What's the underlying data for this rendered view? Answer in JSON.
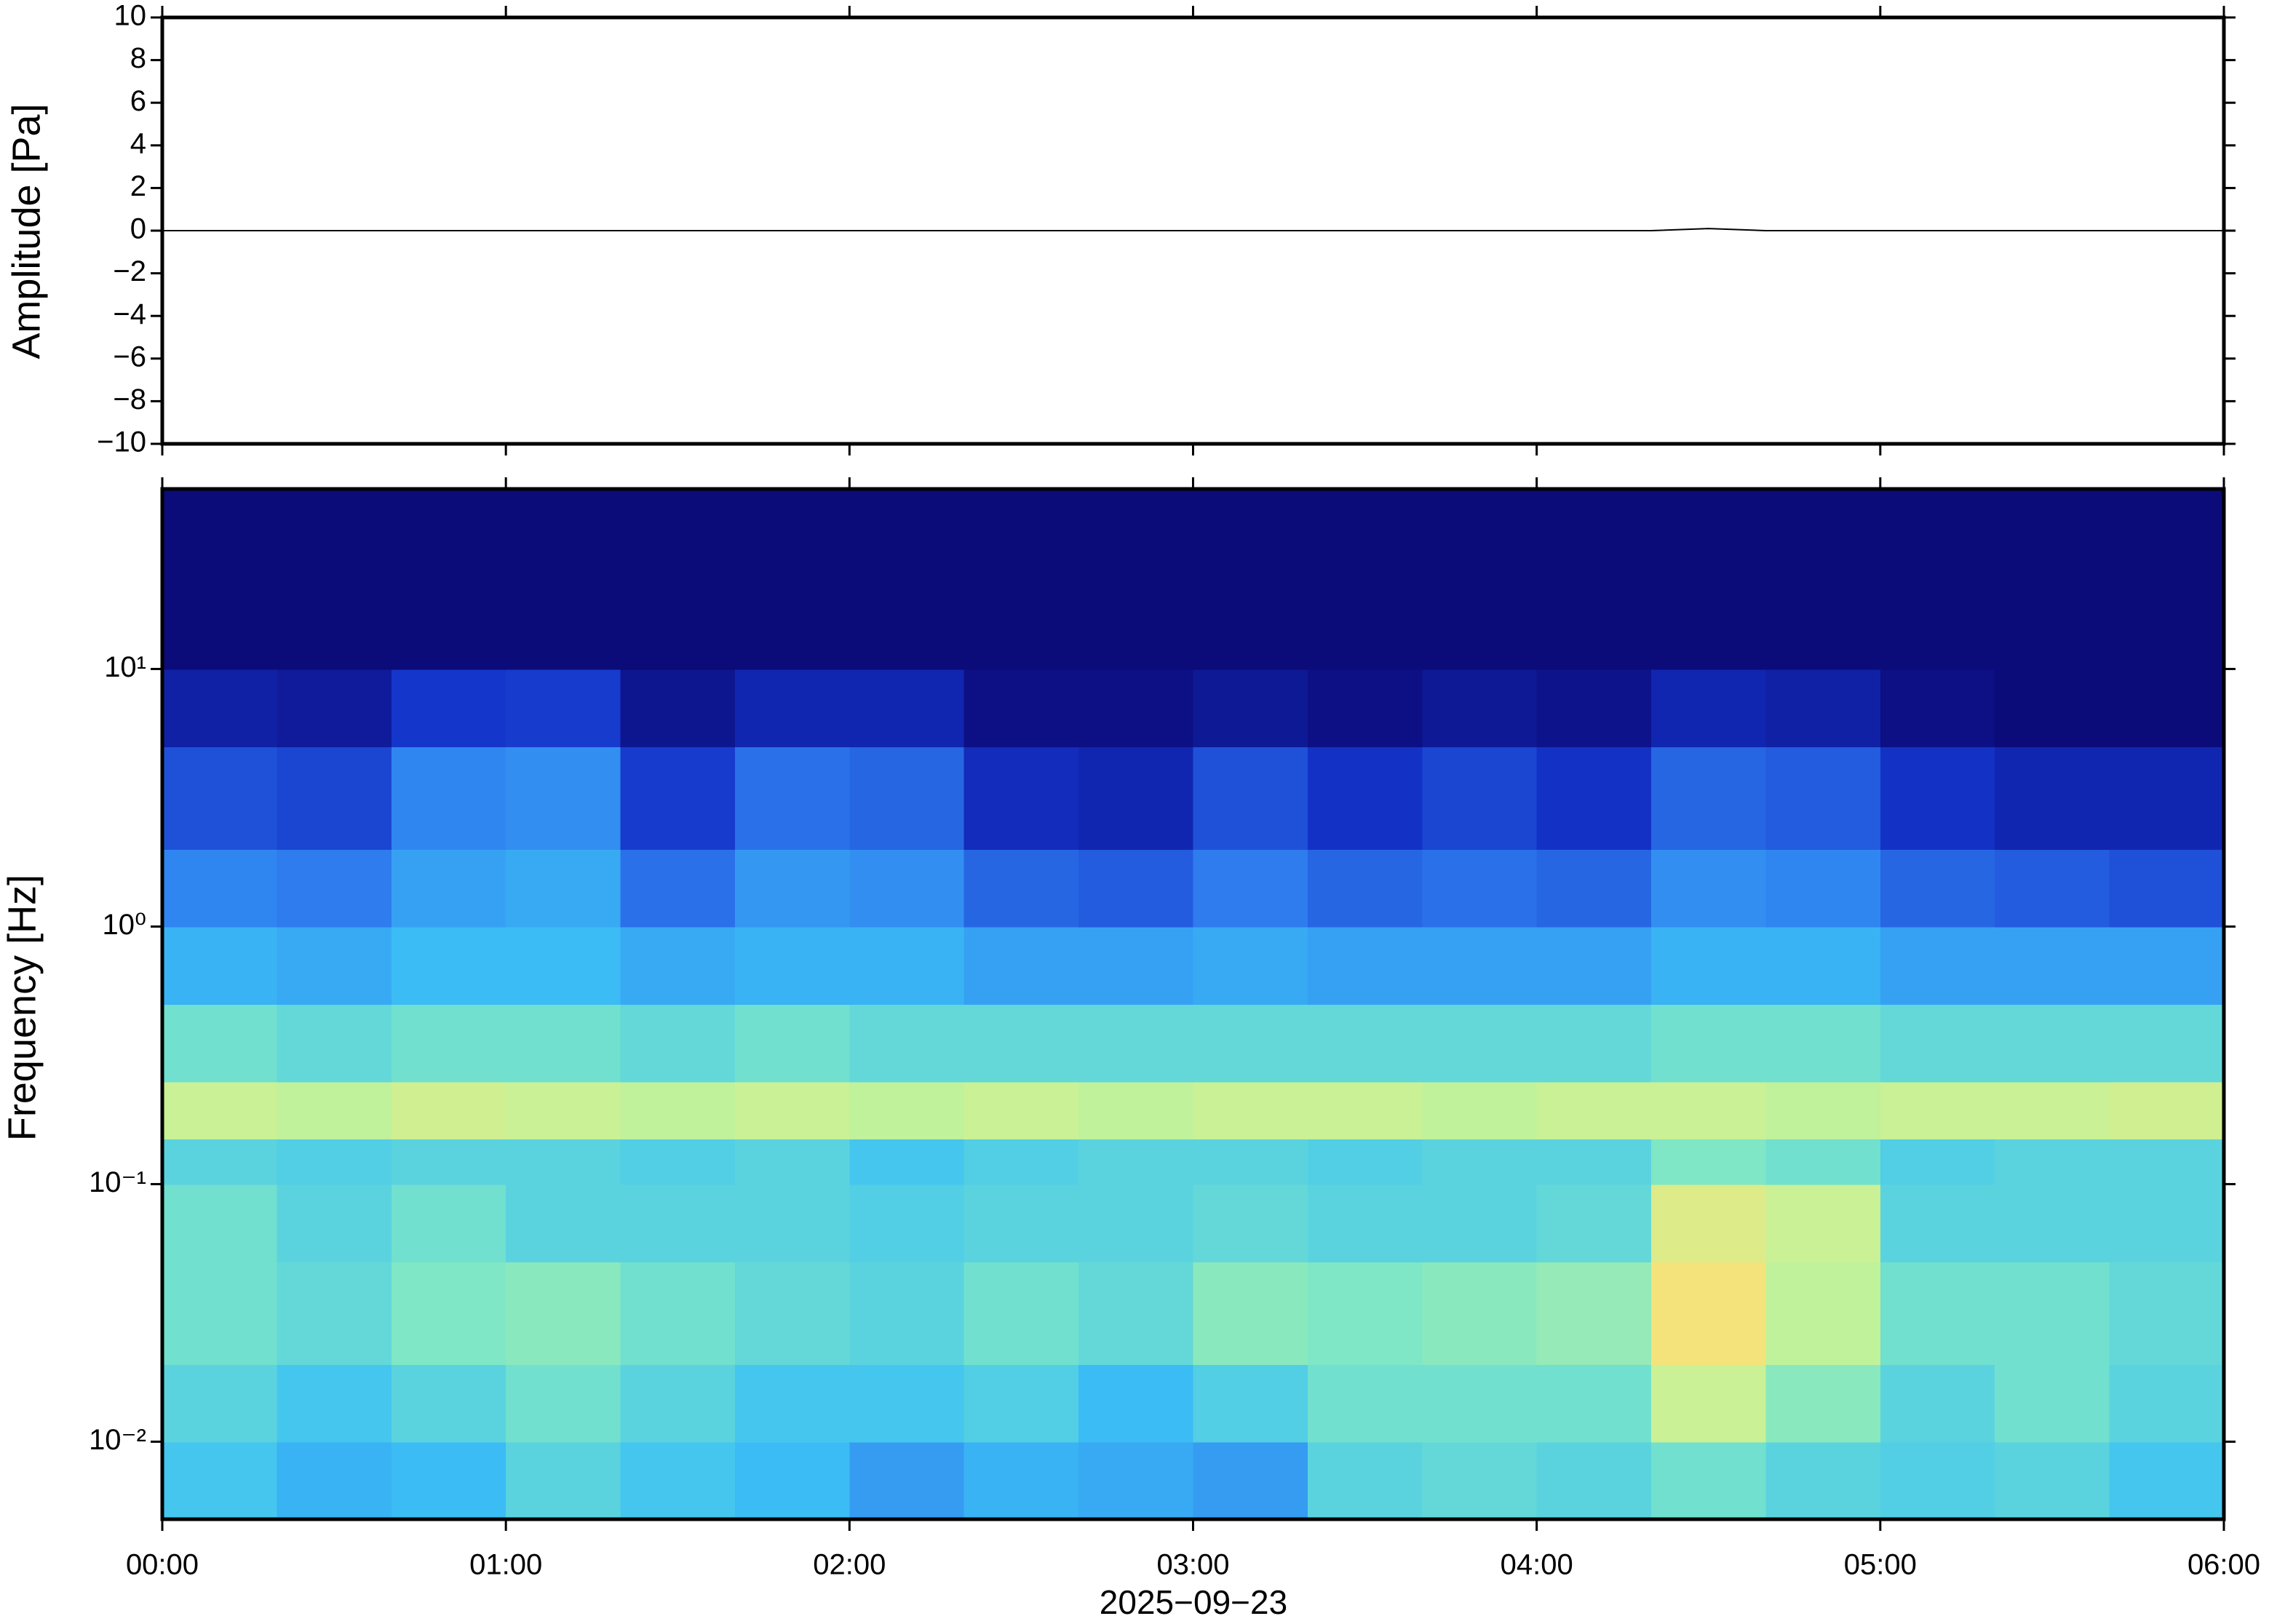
{
  "chart_data": [
    {
      "type": "line",
      "ylabel": "Amplitude [Pa]",
      "color": "#000000",
      "x": [
        "00:00",
        "00:10",
        "00:20",
        "00:30",
        "00:40",
        "00:50",
        "01:00",
        "01:10",
        "01:20",
        "01:30",
        "01:40",
        "01:50",
        "02:00",
        "02:10",
        "02:20",
        "02:30",
        "02:40",
        "02:50",
        "03:00",
        "03:10",
        "03:20",
        "03:30",
        "03:40",
        "03:50",
        "04:00",
        "04:10",
        "04:20",
        "04:30",
        "04:40",
        "04:50",
        "05:00",
        "05:10",
        "05:20",
        "05:30",
        "05:40",
        "05:50",
        "06:00"
      ],
      "values": [
        0,
        0,
        0,
        0,
        0,
        0,
        0,
        0,
        0,
        0,
        0,
        0,
        0,
        0,
        0,
        0,
        0,
        0,
        0,
        0,
        0,
        0,
        0,
        0,
        0,
        0,
        0,
        0.1,
        0,
        0,
        0,
        0,
        0,
        0,
        0,
        0,
        0
      ],
      "xlim": [
        "00:00",
        "06:00"
      ],
      "ylim": [
        -10,
        10
      ],
      "yticks": [
        {
          "value": -10,
          "label": "−10"
        },
        {
          "value": -8,
          "label": "−8"
        },
        {
          "value": -6,
          "label": "−6"
        },
        {
          "value": -4,
          "label": "−4"
        },
        {
          "value": -2,
          "label": "−2"
        },
        0,
        2,
        4,
        6,
        8,
        10
      ]
    },
    {
      "type": "heatmap",
      "xlabel": "2025−09−23",
      "ylabel": "Frequency [Hz]",
      "log_y": true,
      "x_edges": [
        "00:00",
        "00:20",
        "00:40",
        "01:00",
        "01:20",
        "01:40",
        "02:00",
        "02:20",
        "02:40",
        "03:00",
        "03:20",
        "03:40",
        "04:00",
        "04:20",
        "04:40",
        "05:00",
        "05:20",
        "05:40",
        "06:00"
      ],
      "y_edges": [
        0.005,
        0.01,
        0.02,
        0.05,
        0.1,
        0.15,
        0.25,
        0.5,
        1,
        2,
        5,
        10,
        20,
        50
      ],
      "z": [
        [
          0.45,
          0.4,
          0.42,
          0.5,
          0.45,
          0.42,
          0.35,
          0.4,
          0.38,
          0.35,
          0.5,
          0.52,
          0.5,
          0.55,
          0.5,
          0.48,
          0.5,
          0.45
        ],
        [
          0.5,
          0.45,
          0.5,
          0.55,
          0.5,
          0.45,
          0.45,
          0.48,
          0.42,
          0.48,
          0.55,
          0.55,
          0.55,
          0.72,
          0.6,
          0.5,
          0.55,
          0.5
        ],
        [
          0.55,
          0.52,
          0.58,
          0.6,
          0.55,
          0.52,
          0.5,
          0.55,
          0.52,
          0.6,
          0.58,
          0.6,
          0.62,
          0.85,
          0.7,
          0.55,
          0.55,
          0.52
        ],
        [
          0.55,
          0.5,
          0.55,
          0.5,
          0.5,
          0.5,
          0.48,
          0.5,
          0.5,
          0.52,
          0.5,
          0.5,
          0.52,
          0.78,
          0.72,
          0.5,
          0.5,
          0.5
        ],
        [
          0.5,
          0.48,
          0.5,
          0.5,
          0.48,
          0.5,
          0.45,
          0.48,
          0.5,
          0.5,
          0.48,
          0.5,
          0.5,
          0.58,
          0.55,
          0.48,
          0.5,
          0.5
        ],
        [
          0.72,
          0.7,
          0.74,
          0.72,
          0.7,
          0.72,
          0.7,
          0.72,
          0.7,
          0.72,
          0.72,
          0.7,
          0.72,
          0.72,
          0.7,
          0.72,
          0.72,
          0.74
        ],
        [
          0.55,
          0.52,
          0.55,
          0.55,
          0.52,
          0.55,
          0.52,
          0.52,
          0.52,
          0.52,
          0.52,
          0.52,
          0.52,
          0.55,
          0.55,
          0.52,
          0.52,
          0.52
        ],
        [
          0.4,
          0.38,
          0.42,
          0.42,
          0.38,
          0.4,
          0.4,
          0.36,
          0.36,
          0.38,
          0.36,
          0.36,
          0.36,
          0.4,
          0.4,
          0.36,
          0.36,
          0.36
        ],
        [
          0.3,
          0.28,
          0.36,
          0.38,
          0.26,
          0.34,
          0.32,
          0.24,
          0.22,
          0.28,
          0.24,
          0.26,
          0.24,
          0.32,
          0.3,
          0.24,
          0.22,
          0.2
        ],
        [
          0.2,
          0.18,
          0.3,
          0.32,
          0.16,
          0.26,
          0.24,
          0.12,
          0.1,
          0.2,
          0.14,
          0.18,
          0.14,
          0.24,
          0.22,
          0.14,
          0.1,
          0.1
        ],
        [
          0.08,
          0.06,
          0.15,
          0.16,
          0.04,
          0.1,
          0.1,
          0.02,
          0.02,
          0.05,
          0.02,
          0.05,
          0.03,
          0.1,
          0.08,
          0.02,
          0,
          0
        ],
        [
          0,
          0,
          0,
          0,
          0,
          0,
          0,
          0,
          0,
          0,
          0,
          0,
          0,
          0,
          0,
          0,
          0,
          0
        ],
        [
          0,
          0,
          0,
          0,
          0,
          0,
          0,
          0,
          0,
          0,
          0,
          0,
          0,
          0,
          0,
          0,
          0,
          0
        ]
      ],
      "zlim": [
        0,
        1
      ],
      "colormap": [
        "#0b0b79",
        "#1432c8",
        "#2f7ff0",
        "#3cc0f5",
        "#7ae6c8",
        "#c8f296",
        "#f6e27a",
        "#f6a24e"
      ],
      "xlim": [
        "00:00",
        "06:00"
      ],
      "xticks": [
        "00:00",
        "01:00",
        "02:00",
        "03:00",
        "04:00",
        "05:00",
        "06:00"
      ],
      "ylim": [
        0.005,
        50
      ],
      "yticks": [
        {
          "value": 0.01,
          "label": "10⁻²"
        },
        {
          "value": 0.1,
          "label": "10⁻¹"
        },
        {
          "value": 1,
          "label": "10⁰"
        },
        {
          "value": 10,
          "label": "10¹"
        }
      ]
    }
  ]
}
